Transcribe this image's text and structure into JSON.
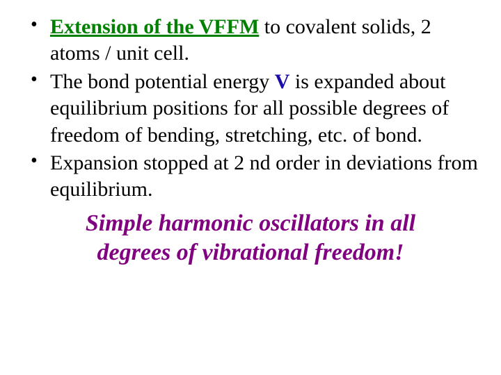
{
  "colors": {
    "background": "#ffffff",
    "text": "#000000",
    "green": "#008000",
    "blue": "#1a0dab",
    "purple": "#800080"
  },
  "typography": {
    "body_font": "Times New Roman",
    "body_size_pt": 30,
    "conclusion_size_pt": 34,
    "line_height": 1.28
  },
  "bullets": [
    {
      "segments": {
        "lead": "Extension of the VFFM",
        "rest": " to covalent solids, 2 atoms / unit cell."
      }
    },
    {
      "segments": {
        "pre": "The bond potential energy ",
        "sym": "V",
        "post": "  is expanded about equilibrium positions for all possible degrees of freedom of bending, stretching, etc. of bond."
      }
    },
    {
      "segments": {
        "text": "Expansion stopped at 2 nd order in deviations from equilibrium."
      }
    }
  ],
  "conclusion": {
    "line1": "Simple harmonic oscillators in all",
    "line2": "degrees of vibrational freedom!"
  }
}
